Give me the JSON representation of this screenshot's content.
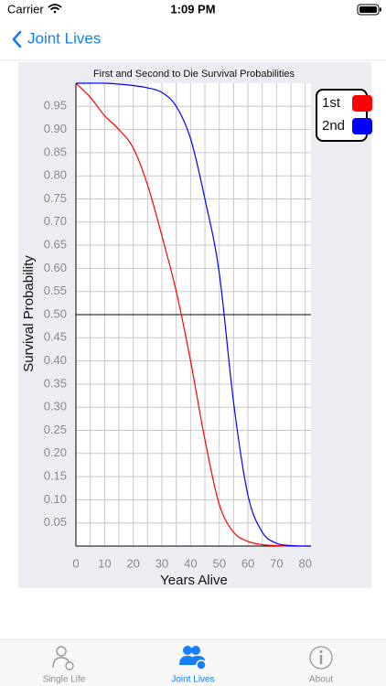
{
  "status_bar": {
    "carrier": "Carrier",
    "time": "1:09 PM"
  },
  "nav": {
    "back": "Joint Lives"
  },
  "tabs": [
    "Single Life",
    "Joint Lives",
    "About"
  ],
  "chart_data": {
    "type": "line",
    "title": "First and Second to Die Survival Probabilities",
    "x_label": "Years Alive",
    "y_label": "Survival Probability",
    "x": [
      0,
      5,
      10,
      15,
      20,
      25,
      30,
      35,
      40,
      45,
      50,
      55,
      60,
      65,
      70,
      75,
      80,
      82
    ],
    "series": [
      {
        "name": "1st",
        "color": "#ff0000",
        "values": [
          1.0,
          0.97,
          0.93,
          0.9,
          0.86,
          0.78,
          0.67,
          0.55,
          0.4,
          0.23,
          0.09,
          0.03,
          0.01,
          0.003,
          0.001,
          0,
          0,
          0
        ]
      },
      {
        "name": "2nd",
        "color": "#0000ff",
        "values": [
          1.0,
          1.0,
          1.0,
          0.998,
          0.995,
          0.99,
          0.98,
          0.95,
          0.88,
          0.75,
          0.59,
          0.31,
          0.11,
          0.03,
          0.006,
          0.001,
          0,
          0
        ]
      }
    ],
    "xlim": [
      0,
      82
    ],
    "ylim": [
      0,
      1
    ],
    "xticks": [
      0,
      10,
      20,
      30,
      40,
      50,
      60,
      70,
      80
    ],
    "x_minor_grid": [
      5,
      15,
      25,
      35,
      45,
      55,
      65,
      75
    ],
    "yticks": [
      0.05,
      {
        "value": 0.1,
        "label": "0.10"
      },
      0.15,
      {
        "value": 0.2,
        "label": "0.20"
      },
      0.25,
      {
        "value": 0.3,
        "label": "0.30"
      },
      0.35,
      {
        "value": 0.4,
        "label": "0.40"
      },
      0.45,
      {
        "value": 0.5,
        "label": "0.50"
      },
      0.55,
      {
        "value": 0.6,
        "label": "0.60"
      },
      0.65,
      {
        "value": 0.7,
        "label": "0.70"
      },
      0.75,
      {
        "value": 0.8,
        "label": "0.80"
      },
      0.85,
      {
        "value": 0.9,
        "label": "0.90"
      },
      0.95
    ],
    "reference_line": 0.5,
    "grid": true,
    "legend": "upper right"
  }
}
